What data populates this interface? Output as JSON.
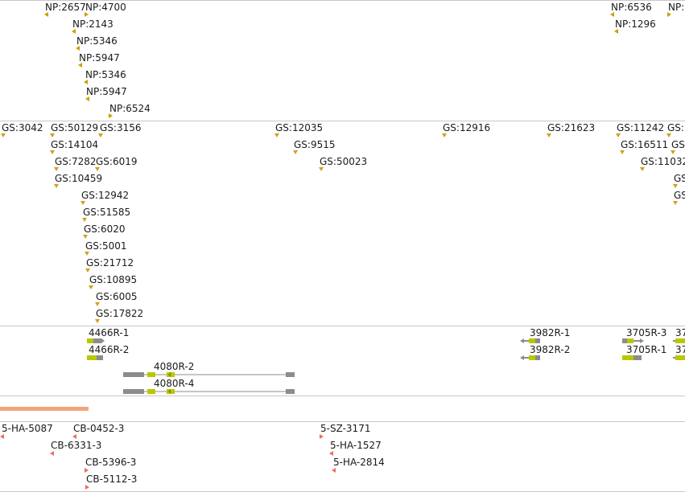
{
  "tracks": {
    "np_features": [
      "NP:2657",
      "NP:4700",
      "NP:2143",
      "NP:5346",
      "NP:5947",
      "NP:5346",
      "NP:5947",
      "NP:6524",
      "NP:6536",
      "NP:1296",
      "NP:"
    ],
    "gs_features": [
      "GS:3042",
      "GS:50129",
      "GS:3156",
      "GS:12035",
      "GS:12916",
      "GS:21623",
      "GS:11242",
      "GS:",
      "GS:14104",
      "GS:9515",
      "GS:16511",
      "GS:",
      "GS:7282",
      "GS:6019",
      "GS:50023",
      "GS:11032",
      "GS:10459",
      "GS:",
      "GS:12942",
      "GS:",
      "GS:51585",
      "GS:6020",
      "GS:5001",
      "GS:21712",
      "GS:10895",
      "GS:6005",
      "GS:17822"
    ],
    "transcripts": [
      "4466R-1",
      "4466R-2",
      "3982R-1",
      "3982R-2",
      "3705R-3",
      "3705R-1",
      "37",
      "37",
      "4080R-2",
      "4080R-4"
    ],
    "sample_features": [
      "5-HA-5087",
      "CB-0452-3",
      "CB-6331-3",
      "CB-5396-3",
      "CB-5112-3",
      "5-SZ-3171",
      "5-HA-1527",
      "5-HA-2814"
    ]
  },
  "colors": {
    "np_marker": "#c8a000",
    "gs_marker": "#d4a017",
    "transcript_exon": "#8c8c8c",
    "transcript_cds": "#b8c800",
    "sample_marker": "#e8705a",
    "coverage_bar": "#f4a47c",
    "divider": "#c8c8c8"
  }
}
